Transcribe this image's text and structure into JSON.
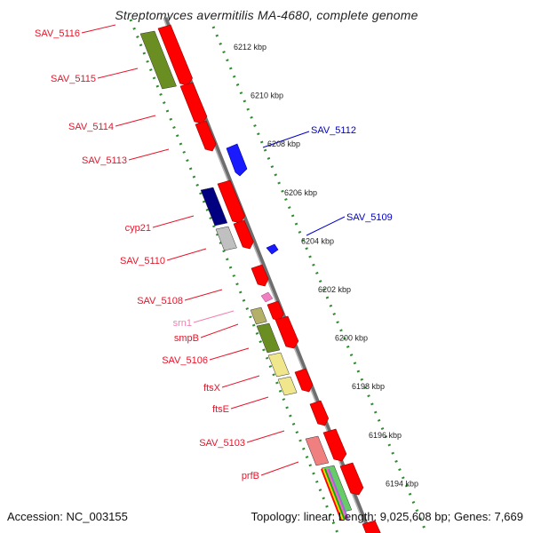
{
  "title": "Streptomyces avermitilis MA-4680, complete genome",
  "footer": {
    "accession": "Accession: NC_003155",
    "topology": "Topology: linear;",
    "length": "Length: 9,025,608 bp;",
    "genes": "Genes: 7,669"
  },
  "colors": {
    "backbone": "#8a8a8a",
    "ruler": "#2e8b2e",
    "forward_gene": "#ff0000",
    "reverse_gene_label": "#0000cc",
    "label": "#e8142a",
    "rna_label": "#f080b0"
  },
  "kbp_ticks": [
    "6212 kbp",
    "6210 kbp",
    "6208 kbp",
    "6206 kbp",
    "6204 kbp",
    "6202 kbp",
    "6200 kbp",
    "6198 kbp",
    "6196 kbp",
    "6194 kbp"
  ],
  "left_gene_labels": [
    "SAV_5116",
    "SAV_5115",
    "SAV_5114",
    "SAV_5113",
    "cyp21",
    "SAV_5110",
    "SAV_5108",
    "srn1",
    "smpB",
    "SAV_5106",
    "ftsX",
    "ftsE",
    "SAV_5103",
    "prfB"
  ],
  "right_gene_labels": [
    "SAV_5112",
    "SAV_5109"
  ]
}
